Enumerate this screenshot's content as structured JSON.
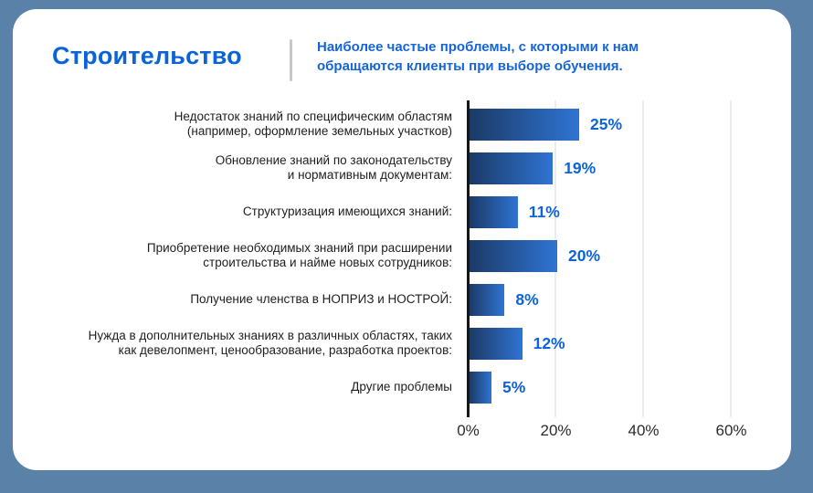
{
  "window": {
    "background": "#5A81A8",
    "card_background": "#FFFFFF"
  },
  "header": {
    "title": "Строительство",
    "subtitle_lines": [
      "Наиболее частые проблемы, с которыми к нам",
      "обращаются клиенты при выборе обучения."
    ],
    "title_color": "#0A63D8",
    "subtitle_color": "#1565D8",
    "divider_color": "#C4C7CC"
  },
  "chart_data": {
    "type": "bar",
    "orientation": "horizontal",
    "title": "Строительство",
    "categories": [
      [
        "Недостаток знаний по специфическим областям",
        "(например, оформление земельных участков)"
      ],
      [
        "Обновление знаний по законодательству",
        "и нормативным документам:"
      ],
      [
        "Структуризация имеющихся знаний:"
      ],
      [
        "Приобретение необходимых знаний при расширении",
        "строительства и найме новых сотрудников:"
      ],
      [
        "Получение членства в НОПРИЗ и НОСТРОЙ:"
      ],
      [
        "Нужда в дополнительных знаниях в различных областях, таких",
        "как девелопмент, ценообразование, разработка проектов:"
      ],
      [
        "Другие проблемы"
      ]
    ],
    "values": [
      25,
      19,
      11,
      20,
      8,
      12,
      5
    ],
    "value_labels": [
      "25%",
      "19%",
      "11%",
      "20%",
      "8%",
      "12%",
      "5%"
    ],
    "x_ticks": [
      {
        "label": "0%",
        "value": 0
      },
      {
        "label": "20%",
        "value": 20
      },
      {
        "label": "40%",
        "value": 40
      },
      {
        "label": "60%",
        "value": 60
      }
    ],
    "xlim": [
      0,
      70
    ],
    "grid": true,
    "legend": false,
    "colors": {
      "bar_gradient_start": "#1B3A66",
      "bar_gradient_end": "#2F74D4",
      "value_label": "#0D63D8",
      "axis_line": "#161616",
      "gridline": "#ECECEC",
      "category_label": "#1E1E1E",
      "tick_label": "#2B2B2B"
    }
  }
}
